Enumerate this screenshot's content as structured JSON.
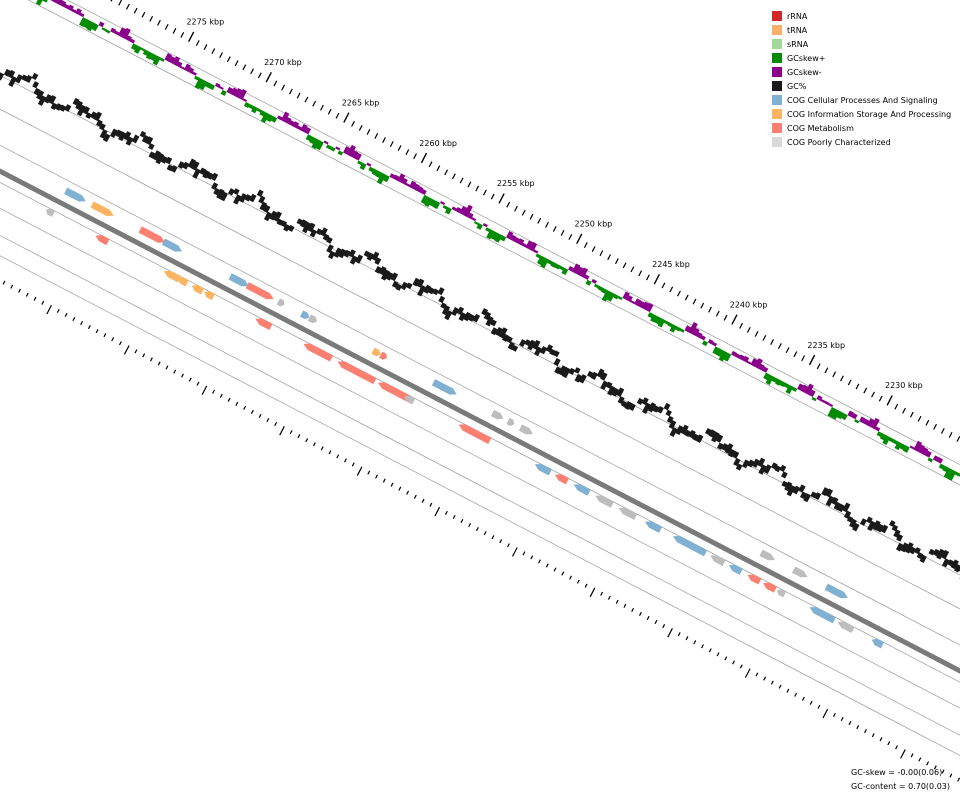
{
  "legend": [
    {
      "label": "rRNA",
      "color": "#d62728"
    },
    {
      "label": "tRNA",
      "color": "#fdae6b"
    },
    {
      "label": "sRNA",
      "color": "#a1d99b"
    },
    {
      "label": "GCskew+",
      "color": "#008b00"
    },
    {
      "label": "GCskew-",
      "color": "#8b008b"
    },
    {
      "label": "GC%",
      "color": "#1a1a1a"
    },
    {
      "label": "COG Cellular Processes And Signaling",
      "color": "#80b1d3"
    },
    {
      "label": "COG Information Storage And Processing",
      "color": "#fdb462"
    },
    {
      "label": "COG Metabolism",
      "color": "#fb8072"
    },
    {
      "label": "COG Poorly Characterized",
      "color": "#d9d9d9"
    }
  ],
  "stats": {
    "gc_skew": "GC-skew = -0.00(0.06)",
    "gc_content": "GC-content = 0.70(0.03)"
  },
  "chart_data": {
    "type": "genome-map",
    "ticks": [
      {
        "label": "2275 kbp",
        "pos": 2275
      },
      {
        "label": "2270 kbp",
        "pos": 2270
      },
      {
        "label": "2265 kbp",
        "pos": 2265
      },
      {
        "label": "2260 kbp",
        "pos": 2260
      },
      {
        "label": "2255 kbp",
        "pos": 2255
      },
      {
        "label": "2250 kbp",
        "pos": 2250
      },
      {
        "label": "2245 kbp",
        "pos": 2245
      },
      {
        "label": "2240 kbp",
        "pos": 2240
      },
      {
        "label": "2235 kbp",
        "pos": 2235
      },
      {
        "label": "2230 kbp",
        "pos": 2230
      }
    ],
    "position_range_kbp": [
      2227,
      2277
    ],
    "features": [
      {
        "kbp": 2277.3,
        "strand": "fwd",
        "cat": "cellular",
        "len": 1.3
      },
      {
        "kbp": 2275.6,
        "strand": "fwd",
        "cat": "info",
        "len": 1.4
      },
      {
        "kbp": 2272.5,
        "strand": "fwd",
        "cat": "metab",
        "len": 1.6
      },
      {
        "kbp": 2271.0,
        "strand": "fwd",
        "cat": "cellular",
        "len": 1.2
      },
      {
        "kbp": 2266.7,
        "strand": "fwd",
        "cat": "cellular",
        "len": 1.2
      },
      {
        "kbp": 2265.6,
        "strand": "fwd",
        "cat": "metab",
        "len": 1.7
      },
      {
        "kbp": 2263.6,
        "strand": "fwd",
        "cat": "grey",
        "len": 0.4
      },
      {
        "kbp": 2262.1,
        "strand": "fwd",
        "cat": "cellular",
        "len": 0.5
      },
      {
        "kbp": 2261.6,
        "strand": "fwd",
        "cat": "grey",
        "len": 0.5
      },
      {
        "kbp": 2257.5,
        "strand": "fwd",
        "cat": "info",
        "len": 0.5
      },
      {
        "kbp": 2257.0,
        "strand": "fwd",
        "cat": "metab",
        "len": 0.4
      },
      {
        "kbp": 2253.6,
        "strand": "fwd",
        "cat": "cellular",
        "len": 1.5
      },
      {
        "kbp": 2249.8,
        "strand": "fwd",
        "cat": "grey",
        "len": 0.7
      },
      {
        "kbp": 2248.8,
        "strand": "fwd",
        "cat": "grey",
        "len": 0.4
      },
      {
        "kbp": 2248.0,
        "strand": "fwd",
        "cat": "grey",
        "len": 0.8
      },
      {
        "kbp": 2232.5,
        "strand": "fwd",
        "cat": "grey",
        "len": 0.9
      },
      {
        "kbp": 2230.4,
        "strand": "fwd",
        "cat": "grey",
        "len": 0.9
      },
      {
        "kbp": 2228.3,
        "strand": "fwd",
        "cat": "cellular",
        "len": 1.4
      },
      {
        "kbp": 2277.8,
        "strand": "rev",
        "cat": "grey",
        "len": 0.5
      },
      {
        "kbp": 2274.6,
        "strand": "rev",
        "cat": "metab",
        "len": 0.8
      },
      {
        "kbp": 2270.2,
        "strand": "rev",
        "cat": "info",
        "len": 1.0
      },
      {
        "kbp": 2269.3,
        "strand": "rev",
        "cat": "info",
        "len": 0.6
      },
      {
        "kbp": 2268.4,
        "strand": "rev",
        "cat": "info",
        "len": 0.7
      },
      {
        "kbp": 2267.6,
        "strand": "rev",
        "cat": "info",
        "len": 0.6
      },
      {
        "kbp": 2264.3,
        "strand": "rev",
        "cat": "metab",
        "len": 1.0
      },
      {
        "kbp": 2261.2,
        "strand": "rev",
        "cat": "metab",
        "len": 1.8
      },
      {
        "kbp": 2259.0,
        "strand": "rev",
        "cat": "metab",
        "len": 2.4
      },
      {
        "kbp": 2256.4,
        "strand": "rev",
        "cat": "metab",
        "len": 2.1
      },
      {
        "kbp": 2254.7,
        "strand": "rev",
        "cat": "grey",
        "len": 0.6
      },
      {
        "kbp": 2251.2,
        "strand": "rev",
        "cat": "metab",
        "len": 2.0
      },
      {
        "kbp": 2246.3,
        "strand": "rev",
        "cat": "cellular",
        "len": 1.0
      },
      {
        "kbp": 2245.0,
        "strand": "rev",
        "cat": "metab",
        "len": 0.8
      },
      {
        "kbp": 2243.8,
        "strand": "rev",
        "cat": "cellular",
        "len": 1.0
      },
      {
        "kbp": 2242.4,
        "strand": "rev",
        "cat": "grey",
        "len": 1.1
      },
      {
        "kbp": 2240.9,
        "strand": "rev",
        "cat": "grey",
        "len": 1.1
      },
      {
        "kbp": 2239.2,
        "strand": "rev",
        "cat": "cellular",
        "len": 1.0
      },
      {
        "kbp": 2237.4,
        "strand": "rev",
        "cat": "cellular",
        "len": 2.0
      },
      {
        "kbp": 2235.9,
        "strand": "rev",
        "cat": "cellular",
        "len": 0.6
      },
      {
        "kbp": 2235.0,
        "strand": "rev",
        "cat": "grey",
        "len": 0.9
      },
      {
        "kbp": 2233.8,
        "strand": "rev",
        "cat": "cellular",
        "len": 0.8
      },
      {
        "kbp": 2232.6,
        "strand": "rev",
        "cat": "metab",
        "len": 0.8
      },
      {
        "kbp": 2231.6,
        "strand": "rev",
        "cat": "metab",
        "len": 0.8
      },
      {
        "kbp": 2230.7,
        "strand": "rev",
        "cat": "grey",
        "len": 0.5
      },
      {
        "kbp": 2228.6,
        "strand": "rev",
        "cat": "cellular",
        "len": 1.6
      },
      {
        "kbp": 2226.8,
        "strand": "rev",
        "cat": "grey",
        "len": 1.0
      },
      {
        "kbp": 2224.6,
        "strand": "rev",
        "cat": "cellular",
        "len": 0.7
      }
    ]
  }
}
